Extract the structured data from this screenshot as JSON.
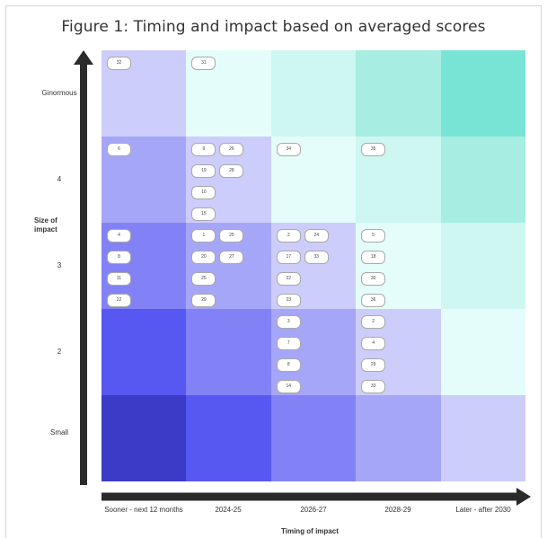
{
  "title": "Figure 1: Timing and impact based on averaged scores",
  "chart_data": {
    "type": "heatmap",
    "title": "Figure 1: Timing and impact based on averaged scores",
    "xlabel": "Timing of impact",
    "ylabel": "Size of impact",
    "x_categories": [
      "Sooner - next 12 months",
      "2024-25",
      "2026-27",
      "2028-29",
      "Later - after 2030"
    ],
    "y_categories": [
      "Ginormous",
      "4",
      "3",
      "2",
      "Small"
    ],
    "cell_colors": [
      [
        "#cdcdfb",
        "#e4fdfa",
        "#cef7f1",
        "#a7ede1",
        "#78e4d6"
      ],
      [
        "#a6a6f8",
        "#cdcdfb",
        "#e4fdfa",
        "#cef7f1",
        "#a7ede1"
      ],
      [
        "#8282f6",
        "#a6a6f8",
        "#cdcdfb",
        "#e4fdfa",
        "#cef7f1"
      ],
      [
        "#5757f1",
        "#8282f6",
        "#a6a6f8",
        "#cdcdfb",
        "#e4fdfa"
      ],
      [
        "#3b3bc7",
        "#5757f1",
        "#8282f6",
        "#a6a6f8",
        "#cdcdfb"
      ]
    ],
    "items": [
      {
        "row": 0,
        "col": 0,
        "slot": 0,
        "label": "32"
      },
      {
        "row": 0,
        "col": 1,
        "slot": 0,
        "label": "31"
      },
      {
        "row": 1,
        "col": 0,
        "slot": 0,
        "label": "6"
      },
      {
        "row": 1,
        "col": 1,
        "slot": 0,
        "label": "9"
      },
      {
        "row": 1,
        "col": 1,
        "slot": 1,
        "label": "26"
      },
      {
        "row": 1,
        "col": 1,
        "slot": 2,
        "label": "19"
      },
      {
        "row": 1,
        "col": 1,
        "slot": 3,
        "label": "28"
      },
      {
        "row": 1,
        "col": 1,
        "slot": 4,
        "label": "10"
      },
      {
        "row": 1,
        "col": 1,
        "slot": 6,
        "label": "15"
      },
      {
        "row": 1,
        "col": 2,
        "slot": 0,
        "label": "34"
      },
      {
        "row": 1,
        "col": 3,
        "slot": 0,
        "label": "35"
      },
      {
        "row": 2,
        "col": 0,
        "slot": 0,
        "label": "4"
      },
      {
        "row": 2,
        "col": 0,
        "slot": 2,
        "label": "8"
      },
      {
        "row": 2,
        "col": 0,
        "slot": 4,
        "label": "11"
      },
      {
        "row": 2,
        "col": 0,
        "slot": 6,
        "label": "22"
      },
      {
        "row": 2,
        "col": 1,
        "slot": 0,
        "label": "1"
      },
      {
        "row": 2,
        "col": 1,
        "slot": 1,
        "label": "25"
      },
      {
        "row": 2,
        "col": 1,
        "slot": 2,
        "label": "20"
      },
      {
        "row": 2,
        "col": 1,
        "slot": 3,
        "label": "27"
      },
      {
        "row": 2,
        "col": 1,
        "slot": 4,
        "label": "25"
      },
      {
        "row": 2,
        "col": 1,
        "slot": 6,
        "label": "29"
      },
      {
        "row": 2,
        "col": 2,
        "slot": 0,
        "label": "2"
      },
      {
        "row": 2,
        "col": 2,
        "slot": 1,
        "label": "24"
      },
      {
        "row": 2,
        "col": 2,
        "slot": 2,
        "label": "17"
      },
      {
        "row": 2,
        "col": 2,
        "slot": 3,
        "label": "33"
      },
      {
        "row": 2,
        "col": 2,
        "slot": 4,
        "label": "22"
      },
      {
        "row": 2,
        "col": 2,
        "slot": 6,
        "label": "23"
      },
      {
        "row": 2,
        "col": 3,
        "slot": 0,
        "label": "5"
      },
      {
        "row": 2,
        "col": 3,
        "slot": 2,
        "label": "18"
      },
      {
        "row": 2,
        "col": 3,
        "slot": 4,
        "label": "30"
      },
      {
        "row": 2,
        "col": 3,
        "slot": 6,
        "label": "36"
      },
      {
        "row": 3,
        "col": 2,
        "slot": 0,
        "label": "3"
      },
      {
        "row": 3,
        "col": 2,
        "slot": 2,
        "label": "7"
      },
      {
        "row": 3,
        "col": 2,
        "slot": 4,
        "label": "8"
      },
      {
        "row": 3,
        "col": 2,
        "slot": 6,
        "label": "14"
      },
      {
        "row": 3,
        "col": 3,
        "slot": 0,
        "label": "2"
      },
      {
        "row": 3,
        "col": 3,
        "slot": 2,
        "label": "4"
      },
      {
        "row": 3,
        "col": 3,
        "slot": 4,
        "label": "29"
      },
      {
        "row": 3,
        "col": 3,
        "slot": 6,
        "label": "33"
      }
    ]
  }
}
